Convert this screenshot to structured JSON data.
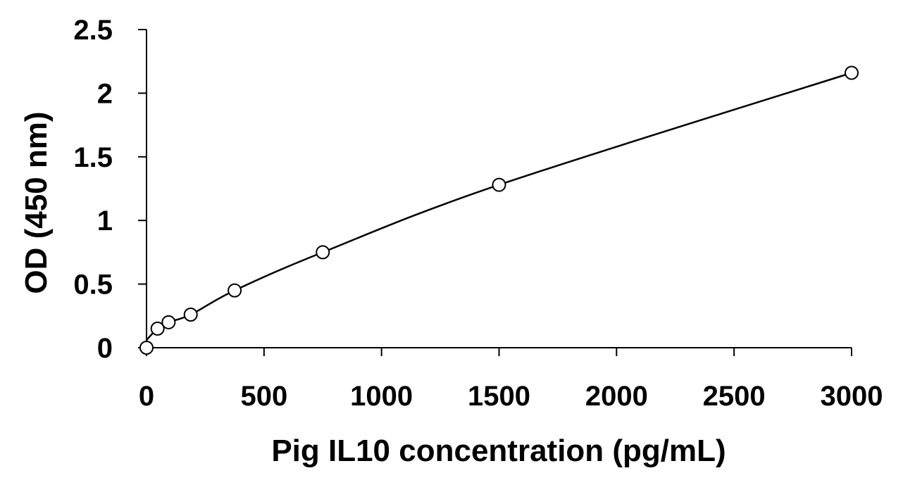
{
  "chart_data": {
    "type": "scatter",
    "title": "",
    "xlabel": "Pig IL10 concentration (pg/mL)",
    "ylabel": "OD (450 nm)",
    "xlim": [
      0,
      3000
    ],
    "ylim": [
      0,
      2.5
    ],
    "x_ticks": [
      "0",
      "500",
      "1000",
      "1500",
      "2000",
      "2500",
      "3000"
    ],
    "y_ticks": [
      "0",
      "0.5",
      "1",
      "1.5",
      "2",
      "2.5"
    ],
    "grid": false,
    "legend": "none",
    "series": [
      {
        "x": [
          0,
          47,
          94,
          188,
          375,
          750,
          1500,
          3000
        ],
        "y": [
          0.0,
          0.15,
          0.2,
          0.26,
          0.45,
          0.75,
          1.28,
          2.16
        ],
        "marker": "open-circle",
        "trendline": "smooth-fit"
      }
    ],
    "colors": {
      "line": "#000000",
      "marker_fill": "#ffffff",
      "marker_stroke": "#000000"
    }
  }
}
